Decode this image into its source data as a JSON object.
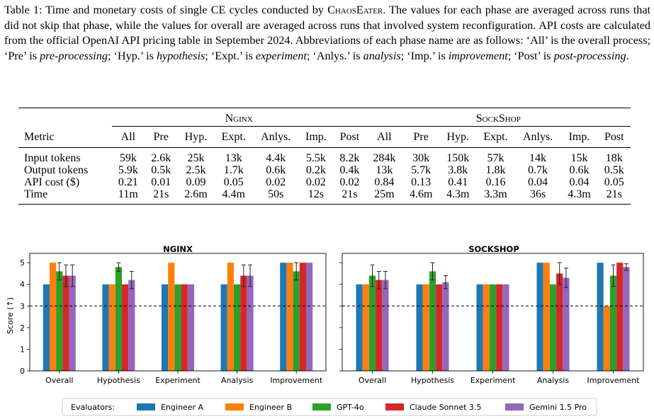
{
  "caption": {
    "label": "Table 1:",
    "part1": " Time and monetary costs of single CE cycles conducted by ",
    "system": "ChaosEater",
    "part2": ". The values for each phase are averaged across runs that did not skip that phase, while the values for overall are averaged across runs that involved system reconfiguration. API costs are calculated from the official OpenAI API pricing table in September 2024. Abbreviations of each phase name are as follows: ‘All’ is the overall process; ‘Pre’ is ",
    "pre": "pre-processing",
    "s3": "; ‘Hyp.’ is ",
    "hyp": "hypothesis",
    "s4": "; ‘Expt.’ is ",
    "expt": "experiment",
    "s5": "; ‘Anlys.’ is ",
    "anlys": "analysis",
    "s6": "; ‘Imp.’ is ",
    "imp": "improvement",
    "s7": "; ‘Post’ is ",
    "post": "post-processing",
    "s8": "."
  },
  "table": {
    "groups": [
      "Nginx",
      "SockShop"
    ],
    "metric_header": "Metric",
    "phases": [
      "All",
      "Pre",
      "Hyp.",
      "Expt.",
      "Anlys.",
      "Imp.",
      "Post"
    ],
    "rows": [
      {
        "metric": "Input tokens",
        "nginx": [
          "59k",
          "2.6k",
          "25k",
          "13k",
          "4.4k",
          "5.5k",
          "8.2k"
        ],
        "sockshop": [
          "284k",
          "30k",
          "150k",
          "57k",
          "14k",
          "15k",
          "18k"
        ]
      },
      {
        "metric": "Output tokens",
        "nginx": [
          "5.9k",
          "0.5k",
          "2.5k",
          "1.7k",
          "0.6k",
          "0.2k",
          "0.4k"
        ],
        "sockshop": [
          "13k",
          "5.7k",
          "3.8k",
          "1.8k",
          "0.7k",
          "0.6k",
          "0.5k"
        ]
      },
      {
        "metric": "API cost ($)",
        "nginx": [
          "0.21",
          "0.01",
          "0.09",
          "0.05",
          "0.02",
          "0.02",
          "0.02"
        ],
        "sockshop": [
          "0.84",
          "0.13",
          "0.41",
          "0.16",
          "0.04",
          "0.04",
          "0.05"
        ]
      },
      {
        "metric": "Time",
        "nginx": [
          "11m",
          "21s",
          "2.6m",
          "4.4m",
          "50s",
          "12s",
          "21s"
        ],
        "sockshop": [
          "25m",
          "4.6m",
          "4.3m",
          "3.3m",
          "36s",
          "4.3m",
          "21s"
        ]
      }
    ]
  },
  "chart_data": [
    {
      "type": "bar",
      "title": "NGINX",
      "ylabel": "Score (↑)",
      "ylim": [
        0,
        5.3
      ],
      "yticks": [
        "0",
        "1",
        "2",
        "3",
        "4",
        "5"
      ],
      "threshold": 3,
      "categories": [
        "Overall",
        "Hypothesis",
        "Experiment",
        "Analysis",
        "Improvement"
      ],
      "series": [
        {
          "name": "Engineer A",
          "values": [
            4,
            4,
            4,
            4,
            5
          ],
          "err": [
            0,
            0,
            0,
            0,
            0
          ]
        },
        {
          "name": "Engineer B",
          "values": [
            5,
            4,
            5,
            5,
            5
          ],
          "err": [
            0,
            0,
            0,
            0,
            0
          ]
        },
        {
          "name": "GPT-4o",
          "values": [
            4.6,
            4.8,
            4,
            4,
            4.6
          ],
          "err": [
            0.4,
            0.2,
            0,
            0,
            0.4
          ]
        },
        {
          "name": "Claude Sonnet 3.5",
          "values": [
            4.4,
            4,
            4,
            4.4,
            5
          ],
          "err": [
            0.5,
            0,
            0,
            0.5,
            0
          ]
        },
        {
          "name": "Gemini 1.5 Pro",
          "values": [
            4.4,
            4.2,
            4,
            4.4,
            5
          ],
          "err": [
            0.5,
            0.4,
            0,
            0.5,
            0
          ]
        }
      ]
    },
    {
      "type": "bar",
      "title": "SOCKSHOP",
      "ylim": [
        0,
        5.3
      ],
      "threshold": 3,
      "categories": [
        "Overall",
        "Hypothesis",
        "Experiment",
        "Analysis",
        "Improvement"
      ],
      "series": [
        {
          "name": "Engineer A",
          "values": [
            4,
            4,
            4,
            5,
            5
          ],
          "err": [
            0,
            0,
            0,
            0,
            0
          ]
        },
        {
          "name": "Engineer B",
          "values": [
            4,
            4,
            4,
            5,
            3
          ],
          "err": [
            0,
            0,
            0,
            0,
            0
          ]
        },
        {
          "name": "GPT-4o",
          "values": [
            4.4,
            4.6,
            4,
            4,
            4.4
          ],
          "err": [
            0.5,
            0.4,
            0,
            0,
            0.5
          ]
        },
        {
          "name": "Claude Sonnet 3.5",
          "values": [
            4.2,
            4,
            4,
            4.5,
            5
          ],
          "err": [
            0.4,
            0,
            0,
            0.5,
            0
          ]
        },
        {
          "name": "Gemini 1.5 Pro",
          "values": [
            4.2,
            4.1,
            4,
            4.3,
            4.8
          ],
          "err": [
            0.4,
            0.3,
            0,
            0.45,
            0.15
          ]
        }
      ]
    }
  ],
  "legend": {
    "title": "Evaluators:",
    "entries": [
      "Engineer A",
      "Engineer B",
      "GPT-4o",
      "Claude Sonnet 3.5",
      "Gemini 1.5 Pro"
    ]
  },
  "colors": {
    "Engineer A": "#1f77b4",
    "Engineer B": "#ff7f0e",
    "GPT-4o": "#2ca02c",
    "Claude Sonnet 3.5": "#d62728",
    "Gemini 1.5 Pro": "#9467bd"
  }
}
